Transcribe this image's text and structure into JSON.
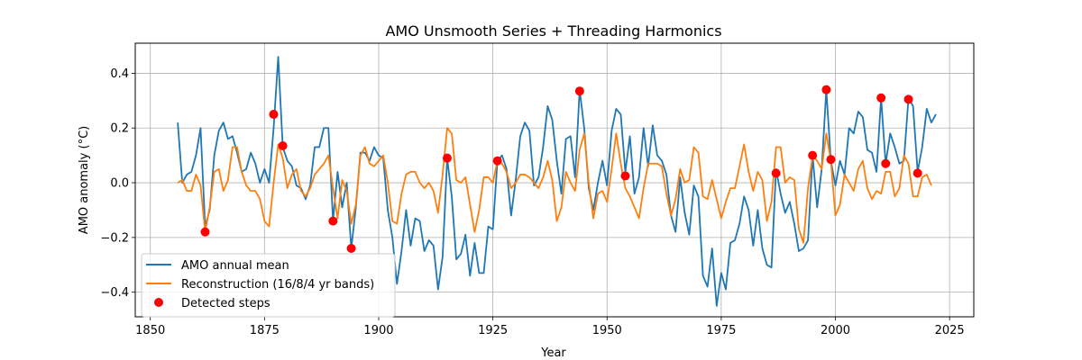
{
  "chart_data": {
    "type": "line",
    "title": "AMO Unsmooth Series + Threading Harmonics",
    "xlabel": "Year",
    "ylabel": "AMO anomaly (°C)",
    "xlim": [
      1846.7,
      2030.3
    ],
    "ylim": [
      -0.49,
      0.51
    ],
    "xticks": [
      1850,
      1875,
      1900,
      1925,
      1950,
      1975,
      2000,
      2025
    ],
    "yticks": [
      -0.4,
      -0.2,
      0.0,
      0.2,
      0.4
    ],
    "xtick_labels": [
      "1850",
      "1875",
      "1900",
      "1925",
      "1950",
      "1975",
      "2000",
      "2025"
    ],
    "ytick_labels": [
      "−0.4",
      "−0.2",
      "0.0",
      "0.2",
      "0.4"
    ],
    "grid": true,
    "legend_position": "lower-left",
    "x_start": 1856,
    "series": [
      {
        "name": "AMO annual mean",
        "color": "#1f77b4",
        "values": [
          0.22,
          0.0,
          0.03,
          0.04,
          0.1,
          0.2,
          -0.16,
          -0.1,
          0.1,
          0.19,
          0.22,
          0.16,
          0.17,
          0.11,
          0.04,
          0.05,
          0.11,
          0.07,
          0.0,
          0.05,
          0.0,
          0.2,
          0.46,
          0.13,
          0.08,
          0.06,
          -0.01,
          -0.02,
          -0.06,
          -0.01,
          0.13,
          0.13,
          0.2,
          0.2,
          -0.14,
          0.04,
          -0.09,
          0.0,
          -0.24,
          -0.09,
          0.11,
          0.11,
          0.08,
          0.13,
          0.1,
          0.09,
          -0.1,
          -0.2,
          -0.37,
          -0.25,
          -0.1,
          -0.23,
          -0.13,
          -0.14,
          -0.25,
          -0.21,
          -0.23,
          -0.39,
          -0.27,
          0.09,
          -0.05,
          -0.28,
          -0.26,
          -0.19,
          -0.34,
          -0.22,
          -0.33,
          -0.33,
          -0.16,
          -0.17,
          0.08,
          0.1,
          0.05,
          -0.12,
          0.01,
          0.17,
          0.22,
          0.19,
          -0.01,
          0.02,
          0.13,
          0.28,
          0.23,
          0.08,
          -0.04,
          0.16,
          0.17,
          0.02,
          0.34,
          0.2,
          -0.02,
          -0.1,
          0.0,
          0.08,
          -0.01,
          0.19,
          0.27,
          0.25,
          0.04,
          0.17,
          -0.04,
          0.02,
          0.2,
          0.06,
          0.21,
          0.1,
          0.08,
          0.03,
          -0.12,
          -0.18,
          0.02,
          -0.11,
          -0.19,
          -0.01,
          -0.05,
          -0.34,
          -0.38,
          -0.24,
          -0.45,
          -0.33,
          -0.39,
          -0.22,
          -0.21,
          -0.15,
          -0.05,
          -0.1,
          -0.23,
          -0.1,
          -0.24,
          -0.3,
          -0.31,
          0.05,
          -0.04,
          -0.11,
          -0.07,
          -0.15,
          -0.25,
          -0.24,
          -0.21,
          0.1,
          -0.09,
          0.05,
          0.34,
          0.08,
          -0.01,
          0.08,
          0.03,
          0.2,
          0.18,
          0.26,
          0.24,
          0.12,
          0.11,
          0.04,
          0.31,
          0.07,
          0.18,
          0.13,
          0.07,
          0.08,
          0.31,
          0.28,
          0.04,
          0.13,
          0.27,
          0.22,
          0.25
        ]
      },
      {
        "name": "Reconstruction (16/8/4 yr bands)",
        "color": "#ff7f0e",
        "values": [
          0.0,
          0.01,
          -0.03,
          -0.03,
          0.03,
          -0.01,
          -0.18,
          -0.09,
          0.04,
          0.05,
          -0.03,
          0.01,
          0.13,
          0.13,
          0.04,
          -0.01,
          -0.03,
          -0.03,
          -0.06,
          -0.14,
          -0.16,
          0.0,
          0.14,
          0.09,
          -0.02,
          0.03,
          0.05,
          -0.03,
          -0.05,
          -0.02,
          0.03,
          0.05,
          0.07,
          0.1,
          -0.02,
          -0.13,
          0.01,
          -0.03,
          -0.15,
          -0.08,
          0.1,
          0.13,
          0.07,
          0.06,
          0.08,
          0.1,
          0.0,
          -0.14,
          -0.15,
          -0.04,
          0.03,
          0.04,
          0.04,
          0.0,
          -0.02,
          0.0,
          -0.03,
          -0.11,
          0.03,
          0.2,
          0.18,
          0.01,
          0.0,
          0.02,
          -0.08,
          -0.18,
          -0.1,
          0.02,
          0.02,
          0.0,
          0.08,
          0.07,
          0.04,
          -0.02,
          0.0,
          0.03,
          0.03,
          0.02,
          0.0,
          -0.02,
          0.02,
          0.08,
          0.01,
          -0.14,
          -0.09,
          0.04,
          0.0,
          -0.03,
          0.12,
          0.18,
          0.0,
          -0.13,
          -0.04,
          -0.03,
          -0.07,
          0.05,
          0.18,
          0.07,
          -0.02,
          -0.05,
          -0.09,
          -0.13,
          -0.02,
          0.07,
          0.07,
          0.07,
          0.06,
          -0.04,
          -0.12,
          -0.06,
          0.05,
          0.0,
          0.01,
          0.13,
          0.11,
          -0.05,
          -0.06,
          0.01,
          -0.06,
          -0.13,
          -0.07,
          -0.02,
          -0.02,
          0.06,
          0.14,
          0.04,
          -0.03,
          0.04,
          0.01,
          -0.14,
          -0.07,
          0.13,
          0.13,
          0.0,
          0.02,
          0.01,
          -0.17,
          -0.22,
          -0.02,
          0.1,
          0.08,
          0.05,
          0.18,
          0.08,
          -0.12,
          -0.08,
          0.03,
          0.0,
          -0.03,
          0.05,
          0.08,
          -0.02,
          -0.06,
          -0.03,
          -0.04,
          0.04,
          0.04,
          -0.05,
          -0.02,
          0.1,
          0.07,
          -0.05,
          -0.05,
          0.02,
          0.03,
          -0.01
        ]
      }
    ],
    "steps": {
      "name": "Detected steps",
      "color": "#ff0000",
      "points": [
        [
          1862,
          -0.18
        ],
        [
          1877,
          0.25
        ],
        [
          1879,
          0.135
        ],
        [
          1890,
          -0.14
        ],
        [
          1894,
          -0.24
        ],
        [
          1915,
          0.09
        ],
        [
          1926,
          0.08
        ],
        [
          1944,
          0.335
        ],
        [
          1954,
          0.025
        ],
        [
          1987,
          0.035
        ],
        [
          1995,
          0.1
        ],
        [
          1998,
          0.34
        ],
        [
          1999,
          0.085
        ],
        [
          2010,
          0.31
        ],
        [
          2011,
          0.07
        ],
        [
          2016,
          0.305
        ],
        [
          2018,
          0.035
        ]
      ]
    }
  }
}
